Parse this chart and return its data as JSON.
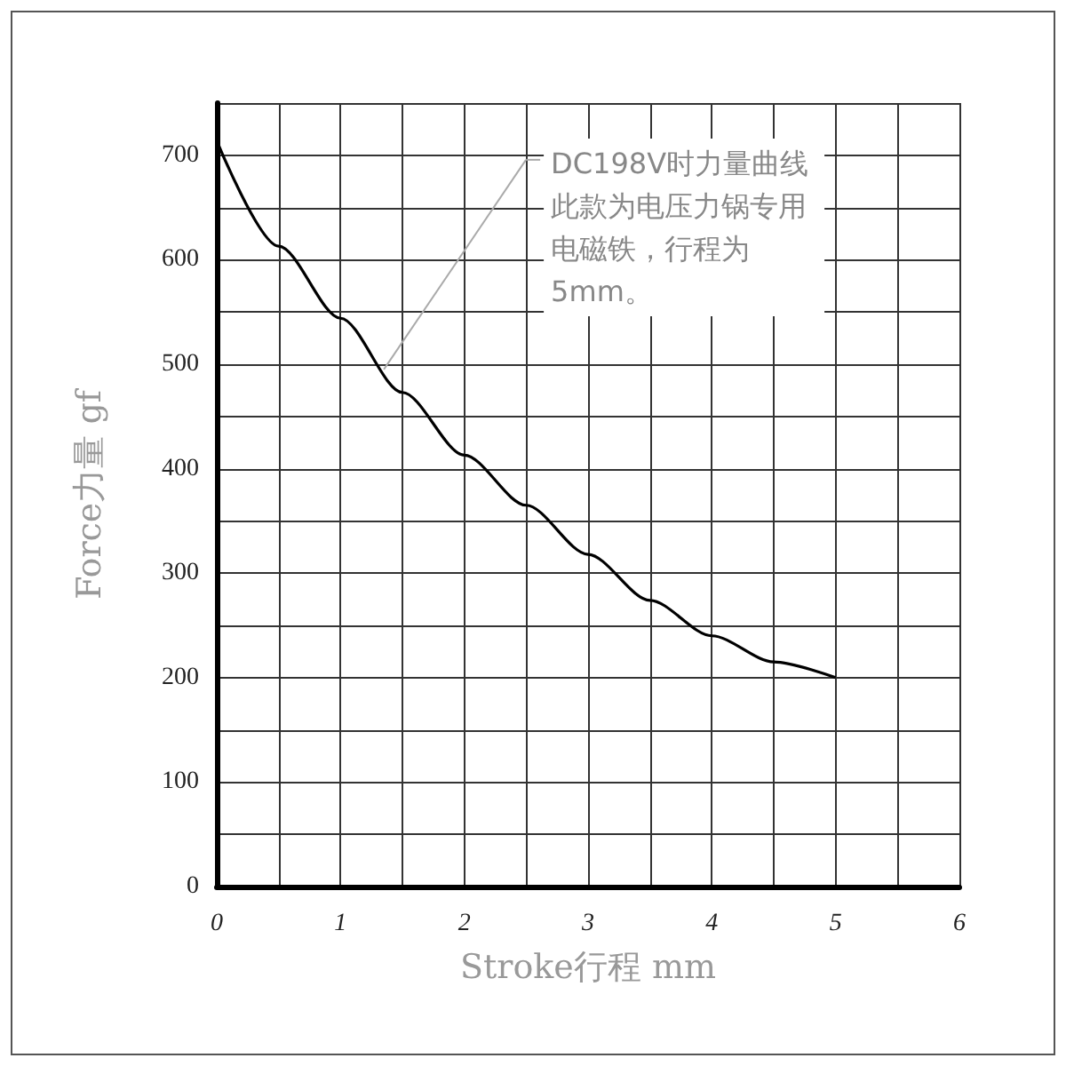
{
  "chart_data": {
    "type": "line",
    "xlabel": "Stroke行程 mm",
    "ylabel": "Force力量 gf",
    "x": [
      0,
      0.5,
      1,
      1.5,
      2,
      2.5,
      3,
      3.5,
      4,
      4.5,
      5
    ],
    "series": [
      {
        "color": "#000000",
        "values": [
          714,
          613,
          544,
          473,
          413,
          365,
          318,
          274,
          240,
          215,
          200
        ]
      }
    ],
    "xlim": [
      0,
      6
    ],
    "xticks": [
      0,
      {
        "value": 0.5,
        "label": null
      },
      1,
      {
        "value": 1.5,
        "label": null
      },
      2,
      {
        "value": 2.5,
        "label": null
      },
      3,
      {
        "value": 3.5,
        "label": null
      },
      4,
      {
        "value": 4.5,
        "label": null
      },
      5,
      {
        "value": 5.5,
        "label": null
      },
      6
    ],
    "ylim": [
      0,
      750
    ],
    "yticks": [
      0,
      {
        "value": 50,
        "label": null
      },
      100,
      {
        "value": 150,
        "label": null
      },
      200,
      {
        "value": 250,
        "label": null
      },
      300,
      {
        "value": 350,
        "label": null
      },
      400,
      {
        "value": 450,
        "label": null
      },
      500,
      {
        "value": 550,
        "label": null
      },
      600,
      {
        "value": 650,
        "label": null
      },
      700,
      {
        "value": 750,
        "label": null
      }
    ],
    "grid": true,
    "marker": "none",
    "line_style": "solid",
    "annotations": [
      {
        "text": "DC198V时力量曲线此款为电压力锅专用电磁铁，行程为5mm。",
        "x": 1.35,
        "y": 495
      }
    ]
  }
}
